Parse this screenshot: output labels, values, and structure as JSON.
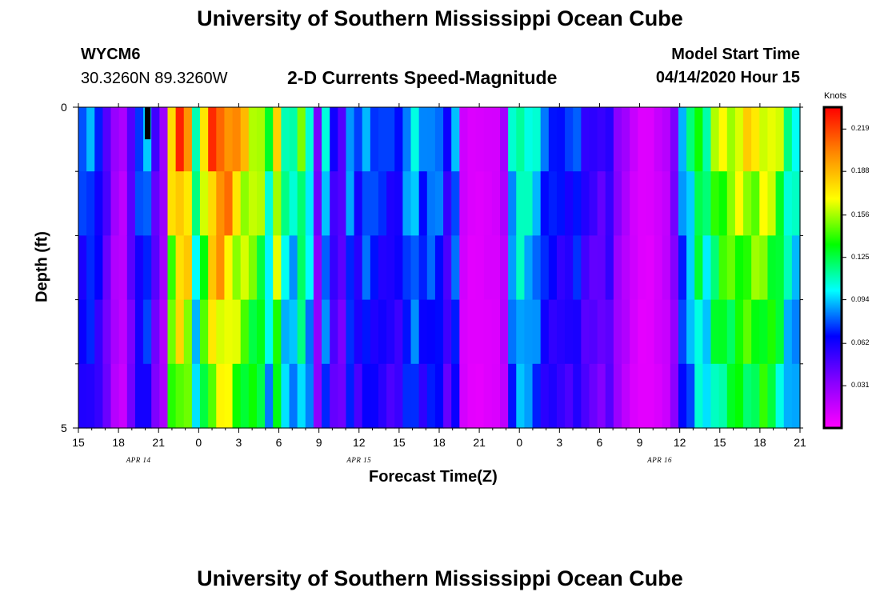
{
  "header": {
    "title": "University of Southern Mississippi Ocean Cube",
    "station": "WYCM6",
    "coords": "30.3260N 89.3260W",
    "subtitle": "2-D Currents Speed-Magnitude",
    "model_start_label": "Model Start Time",
    "model_start_value": "04/14/2020 Hour 15"
  },
  "footer": {
    "title": "University of Southern Mississippi Ocean Cube"
  },
  "chart_data": {
    "type": "heatmap",
    "title": "2-D Currents Speed-Magnitude",
    "xlabel": "Forecast Time(Z)",
    "ylabel": "Depth (ft)",
    "x_tick_labels": [
      "15",
      "18",
      "21",
      "0",
      "3",
      "6",
      "9",
      "12",
      "15",
      "18",
      "21",
      "0",
      "3",
      "6",
      "9",
      "12",
      "15",
      "18",
      "21"
    ],
    "date_labels": [
      {
        "label": "APR 14",
        "tick_index": 1.5
      },
      {
        "label": "APR 15",
        "tick_index": 7
      },
      {
        "label": "APR 16",
        "tick_index": 14.5
      }
    ],
    "y_tick_labels": [
      "0",
      "5"
    ],
    "ylim": [
      0,
      5
    ],
    "colorbar": {
      "unit": "Knots",
      "ticks": [
        "0.219",
        "0.188",
        "0.156",
        "0.125",
        "0.094",
        "0.062",
        "0.031"
      ],
      "range": [
        0.0,
        0.235
      ],
      "stops": [
        "#ff00ff",
        "#8800ff",
        "#0000ff",
        "#00ffff",
        "#00ff00",
        "#ffff00",
        "#ff8800",
        "#ff0000"
      ]
    },
    "depth_rows": 5,
    "hours_per_column": 1,
    "start_hour": 15,
    "column_speeds": [
      0.078,
      0.085,
      0.072,
      0.05,
      0.028,
      0.022,
      0.05,
      0.078,
      0.088,
      0.05,
      0.03,
      0.18,
      0.21,
      0.2,
      0.12,
      0.17,
      0.21,
      0.22,
      0.21,
      0.19,
      0.18,
      0.17,
      0.16,
      0.12,
      0.18,
      0.12,
      0.11,
      0.14,
      0.11,
      0.04,
      0.1,
      0.06,
      0.05,
      0.09,
      0.07,
      0.09,
      0.08,
      0.075,
      0.07,
      0.07,
      0.09,
      0.1,
      0.08,
      0.09,
      0.085,
      0.06,
      0.09,
      0.015,
      0.01,
      0.01,
      0.012,
      0.013,
      0.025,
      0.1,
      0.12,
      0.11,
      0.1,
      0.08,
      0.075,
      0.07,
      0.07,
      0.08,
      0.06,
      0.055,
      0.05,
      0.06,
      0.035,
      0.025,
      0.015,
      0.01,
      0.01,
      0.015,
      0.02,
      0.04,
      0.09,
      0.11,
      0.14,
      0.12,
      0.15,
      0.16,
      0.165,
      0.17,
      0.17,
      0.17,
      0.175,
      0.165,
      0.15,
      0.12,
      0.11
    ],
    "depth_factors": [
      1.0,
      0.92,
      0.85,
      0.8,
      0.75
    ],
    "masked_cells": [
      {
        "column": 8,
        "row": 0
      }
    ]
  }
}
